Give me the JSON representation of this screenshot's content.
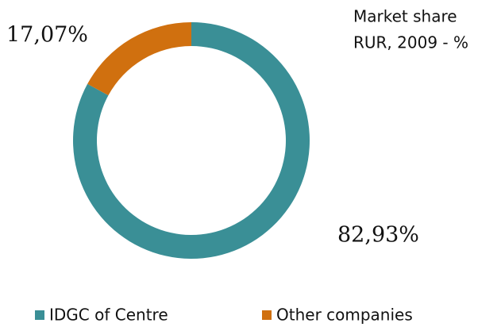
{
  "chart_data": {
    "type": "donut",
    "title": "Market share",
    "subtitle": "RUR, 2009 - %",
    "categories": [
      "IDGC of Centre",
      "Other companies"
    ],
    "values": [
      82.93,
      17.07
    ],
    "value_labels": [
      "82,93%",
      "17,07%"
    ],
    "colors": [
      "#3a8f96",
      "#d0700f"
    ],
    "legend": "bottom"
  }
}
